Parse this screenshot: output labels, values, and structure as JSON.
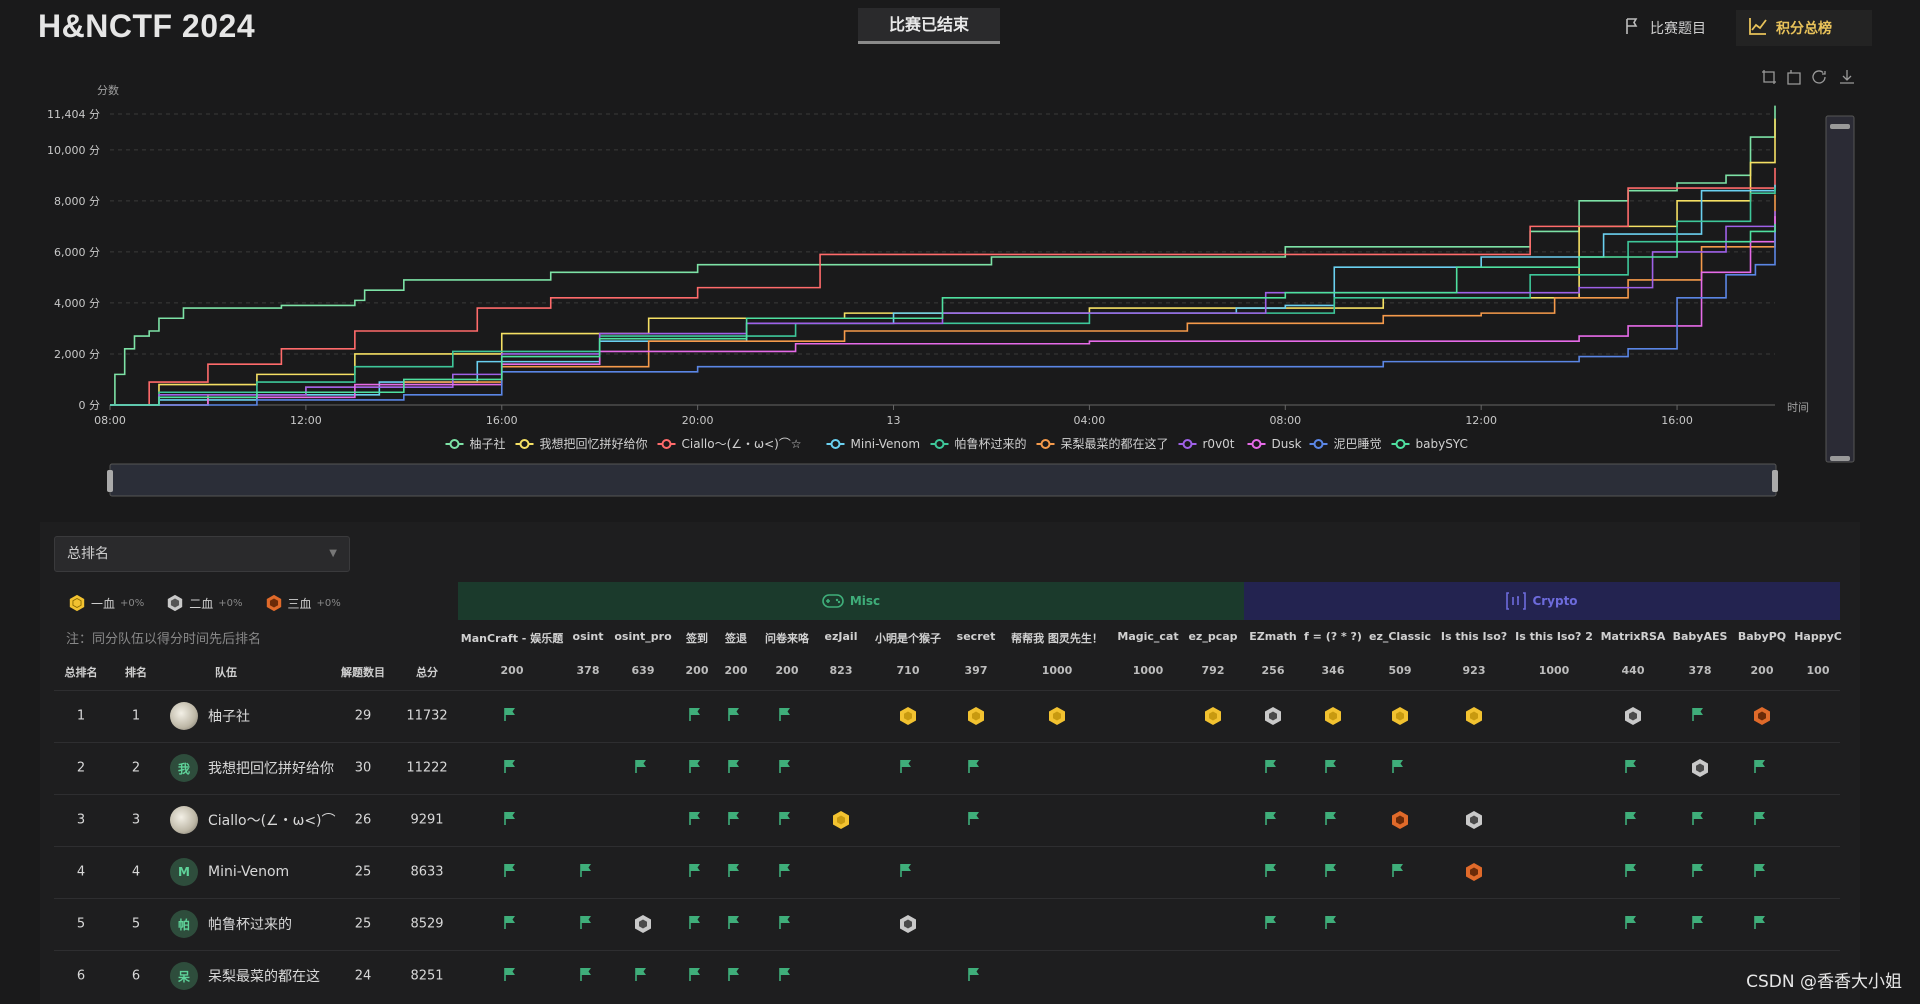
{
  "header": {
    "title": "H&NCTF 2024",
    "status_tab": "比赛已结束",
    "nav_problems": "比赛题目",
    "nav_scoreboard": "积分总榜"
  },
  "chart_data": {
    "type": "line",
    "ylabel": "分数",
    "xlabel": "时间",
    "y_ticks": [
      "0 分",
      "2,000 分",
      "4,000 分",
      "6,000 分",
      "8,000 分",
      "10,000 分",
      "11,404 分"
    ],
    "y_tick_values": [
      0,
      2000,
      4000,
      6000,
      8000,
      10000,
      11404
    ],
    "ylim": [
      0,
      11404
    ],
    "x_ticks": [
      "08:00",
      "12:00",
      "16:00",
      "20:00",
      "13",
      "04:00",
      "08:00",
      "12:00",
      "16:00"
    ],
    "x_tick_hours": [
      0,
      4,
      8,
      12,
      16,
      20,
      24,
      28,
      32
    ],
    "xlim_hours": [
      0,
      34
    ],
    "grid": true,
    "legend_position": "bottom",
    "series": [
      {
        "name": "柚子社",
        "color": "#7de2a6",
        "points": [
          [
            0,
            0
          ],
          [
            0.1,
            1200
          ],
          [
            0.3,
            2200
          ],
          [
            0.5,
            2700
          ],
          [
            0.8,
            2900
          ],
          [
            1.0,
            3400
          ],
          [
            1.5,
            3800
          ],
          [
            3.0,
            3800
          ],
          [
            3.5,
            3900
          ],
          [
            5.0,
            4100
          ],
          [
            5.2,
            4500
          ],
          [
            6.0,
            4900
          ],
          [
            9.0,
            5200
          ],
          [
            12.0,
            5500
          ],
          [
            18.0,
            5800
          ],
          [
            24.0,
            6200
          ],
          [
            28.0,
            6200
          ],
          [
            29.0,
            6800
          ],
          [
            30.0,
            8000
          ],
          [
            31.0,
            8400
          ],
          [
            32.0,
            8700
          ],
          [
            33.0,
            9000
          ],
          [
            33.5,
            10500
          ],
          [
            34.0,
            11732
          ]
        ]
      },
      {
        "name": "我想把回忆拼好给你",
        "color": "#f5e064",
        "points": [
          [
            0,
            0
          ],
          [
            1.0,
            800
          ],
          [
            3.0,
            1200
          ],
          [
            5.0,
            2000
          ],
          [
            8.0,
            2800
          ],
          [
            11.0,
            3400
          ],
          [
            15.0,
            3600
          ],
          [
            20.0,
            3800
          ],
          [
            26.0,
            4200
          ],
          [
            30.0,
            7000
          ],
          [
            32.0,
            8000
          ],
          [
            33.5,
            9500
          ],
          [
            34.0,
            11222
          ]
        ]
      },
      {
        "name": "Ciallo～(∠・ω<)⌒☆",
        "color": "#ff6b6b",
        "points": [
          [
            0,
            0
          ],
          [
            0.8,
            900
          ],
          [
            2.0,
            1600
          ],
          [
            3.5,
            2200
          ],
          [
            5.0,
            2900
          ],
          [
            7.5,
            3800
          ],
          [
            9.0,
            4200
          ],
          [
            12.0,
            4600
          ],
          [
            14.5,
            5900
          ],
          [
            24.0,
            5900
          ],
          [
            29.0,
            7000
          ],
          [
            31.0,
            8500
          ],
          [
            34.0,
            9291
          ]
        ]
      },
      {
        "name": "Mini-Venom",
        "color": "#6ad0f0",
        "points": [
          [
            0,
            0
          ],
          [
            1.0,
            200
          ],
          [
            3.0,
            400
          ],
          [
            5.5,
            900
          ],
          [
            7.5,
            1700
          ],
          [
            10.0,
            2500
          ],
          [
            13.0,
            3200
          ],
          [
            16.0,
            3600
          ],
          [
            23.0,
            3800
          ],
          [
            24.0,
            3900
          ],
          [
            25.0,
            5400
          ],
          [
            28.0,
            5800
          ],
          [
            30.5,
            6700
          ],
          [
            32.5,
            8400
          ],
          [
            34.0,
            8633
          ]
        ]
      },
      {
        "name": "帕鲁杯过来的",
        "color": "#3ec79a",
        "points": [
          [
            0,
            0
          ],
          [
            1.0,
            500
          ],
          [
            3.0,
            900
          ],
          [
            5.0,
            1500
          ],
          [
            7.0,
            2100
          ],
          [
            10.0,
            2700
          ],
          [
            14.0,
            3200
          ],
          [
            20.0,
            3600
          ],
          [
            25.0,
            4200
          ],
          [
            29.0,
            5100
          ],
          [
            31.0,
            6400
          ],
          [
            32.0,
            7200
          ],
          [
            33.5,
            8300
          ],
          [
            34.0,
            8529
          ]
        ]
      },
      {
        "name": "呆梨最菜的都在这了",
        "color": "#f59a4b",
        "points": [
          [
            0,
            0
          ],
          [
            2.0,
            400
          ],
          [
            4.0,
            700
          ],
          [
            6.0,
            900
          ],
          [
            8.0,
            1500
          ],
          [
            11.0,
            2500
          ],
          [
            15.0,
            2900
          ],
          [
            22.0,
            3200
          ],
          [
            26.0,
            3500
          ],
          [
            28.0,
            3600
          ],
          [
            29.5,
            4200
          ],
          [
            31.0,
            4900
          ],
          [
            32.5,
            6200
          ],
          [
            34.0,
            8251
          ]
        ]
      },
      {
        "name": "r0v0t",
        "color": "#9f61e8",
        "points": [
          [
            0,
            0
          ],
          [
            1.0,
            400
          ],
          [
            4.0,
            700
          ],
          [
            7.0,
            1200
          ],
          [
            8.0,
            2000
          ],
          [
            10.0,
            2800
          ],
          [
            13.0,
            3200
          ],
          [
            17.0,
            3600
          ],
          [
            23.5,
            3600
          ],
          [
            23.6,
            4400
          ],
          [
            27.0,
            4400
          ],
          [
            30.0,
            4600
          ],
          [
            31.5,
            6000
          ],
          [
            33.0,
            7000
          ],
          [
            34.0,
            7600
          ]
        ]
      },
      {
        "name": "Dusk",
        "color": "#e66be8",
        "points": [
          [
            0,
            0
          ],
          [
            2.0,
            300
          ],
          [
            5.0,
            800
          ],
          [
            8.0,
            1600
          ],
          [
            10.0,
            2100
          ],
          [
            14.0,
            2400
          ],
          [
            20.0,
            2500
          ],
          [
            28.0,
            2500
          ],
          [
            30.0,
            2700
          ],
          [
            31.0,
            3100
          ],
          [
            32.5,
            5200
          ],
          [
            33.5,
            6400
          ],
          [
            34.0,
            7400
          ]
        ]
      },
      {
        "name": "泥巴睡觉",
        "color": "#5b86e5",
        "points": [
          [
            0,
            0
          ],
          [
            3.0,
            200
          ],
          [
            6.0,
            400
          ],
          [
            8.0,
            1300
          ],
          [
            12.0,
            1500
          ],
          [
            20.0,
            1500
          ],
          [
            26.0,
            1700
          ],
          [
            30.0,
            1900
          ],
          [
            31.0,
            2200
          ],
          [
            32.0,
            4200
          ],
          [
            33.0,
            5100
          ],
          [
            33.6,
            5500
          ],
          [
            34.0,
            6900
          ]
        ]
      },
      {
        "name": "babySYC",
        "color": "#4fe0a0",
        "points": [
          [
            0,
            0
          ],
          [
            1.0,
            300
          ],
          [
            3.0,
            500
          ],
          [
            6.0,
            1000
          ],
          [
            8.0,
            1900
          ],
          [
            10.0,
            2600
          ],
          [
            13.0,
            3400
          ],
          [
            17.0,
            4200
          ],
          [
            24.0,
            4400
          ],
          [
            27.5,
            5400
          ],
          [
            30.0,
            5800
          ],
          [
            32.0,
            6400
          ],
          [
            33.5,
            6800
          ],
          [
            34.0,
            7100
          ]
        ]
      }
    ]
  },
  "table": {
    "select_value": "总排名",
    "medals": [
      {
        "label": "一血",
        "pct": "+0%",
        "icon": "gold-hexagon-icon"
      },
      {
        "label": "二血",
        "pct": "+0%",
        "icon": "silver-hexagon-icon"
      },
      {
        "label": "三血",
        "pct": "+0%",
        "icon": "bronze-hexagon-icon"
      }
    ],
    "note": "注：同分队伍以得分时间先后排名",
    "categories": [
      {
        "name": "Misc",
        "icon": "gamepad-icon"
      },
      {
        "name": "Crypto",
        "icon": "binary-icon"
      }
    ],
    "fixed_headers": [
      "总排名",
      "排名",
      "队伍",
      "解题数目",
      "总分"
    ],
    "problems": [
      {
        "name": "ManCraft - 娱乐题",
        "score": "200"
      },
      {
        "name": "osint",
        "score": "378"
      },
      {
        "name": "osint_pro",
        "score": "639"
      },
      {
        "name": "签到",
        "score": "200"
      },
      {
        "name": "签退",
        "score": "200"
      },
      {
        "name": "问卷来咯",
        "score": "200"
      },
      {
        "name": "ezJail",
        "score": "823"
      },
      {
        "name": "小明是个猴子",
        "score": "710"
      },
      {
        "name": "secret",
        "score": "397"
      },
      {
        "name": "帮帮我 图灵先生！",
        "score": "1000"
      },
      {
        "name": "Magic_cat",
        "score": "1000"
      },
      {
        "name": "ez_pcap",
        "score": "792"
      },
      {
        "name": "EZmath",
        "score": "256"
      },
      {
        "name": "f = (? * ?)",
        "score": "346"
      },
      {
        "name": "ez_Classic",
        "score": "509"
      },
      {
        "name": "Is this Iso?",
        "score": "923"
      },
      {
        "name": "Is this Iso? 2",
        "score": "1000"
      },
      {
        "name": "MatrixRSA",
        "score": "440"
      },
      {
        "name": "BabyAES",
        "score": "378"
      },
      {
        "name": "BabyPQ",
        "score": "200"
      },
      {
        "name": "HappyC",
        "score": "100"
      }
    ],
    "rows": [
      {
        "overall": "1",
        "rank": "1",
        "team": "柚子社",
        "avatar": "",
        "solved": "29",
        "total": "11732",
        "marks": [
          "flag",
          "",
          "",
          "flag",
          "flag",
          "flag",
          "",
          "gold",
          "gold",
          "gold",
          "",
          "gold",
          "silver",
          "gold",
          "gold",
          "gold",
          "",
          "silver",
          "flag",
          "bronze",
          ""
        ]
      },
      {
        "overall": "2",
        "rank": "2",
        "team": "我想把回忆拼好给你",
        "avatar": "我",
        "solved": "30",
        "total": "11222",
        "marks": [
          "flag",
          "",
          "flag",
          "flag",
          "flag",
          "flag",
          "",
          "flag",
          "flag",
          "",
          "",
          "",
          "flag",
          "flag",
          "flag",
          "",
          "",
          "flag",
          "silver",
          "flag",
          ""
        ]
      },
      {
        "overall": "3",
        "rank": "3",
        "team": "Ciallo～(∠・ω<)⌒",
        "avatar": "",
        "solved": "26",
        "total": "9291",
        "marks": [
          "flag",
          "",
          "",
          "flag",
          "flag",
          "flag",
          "gold",
          "",
          "flag",
          "",
          "",
          "",
          "flag",
          "flag",
          "bronze",
          "silver",
          "",
          "flag",
          "flag",
          "flag",
          ""
        ]
      },
      {
        "overall": "4",
        "rank": "4",
        "team": "Mini-Venom",
        "avatar": "M",
        "solved": "25",
        "total": "8633",
        "marks": [
          "flag",
          "flag",
          "",
          "flag",
          "flag",
          "flag",
          "",
          "flag",
          "",
          "",
          "",
          "",
          "flag",
          "flag",
          "flag",
          "bronze",
          "",
          "flag",
          "flag",
          "flag",
          ""
        ]
      },
      {
        "overall": "5",
        "rank": "5",
        "team": "帕鲁杯过来的",
        "avatar": "帕",
        "solved": "25",
        "total": "8529",
        "marks": [
          "flag",
          "flag",
          "silver",
          "flag",
          "flag",
          "flag",
          "",
          "silver",
          "",
          "",
          "",
          "",
          "flag",
          "flag",
          "",
          "",
          "",
          "flag",
          "flag",
          "flag",
          ""
        ]
      },
      {
        "overall": "6",
        "rank": "6",
        "team": "呆梨最菜的都在这",
        "avatar": "呆",
        "solved": "24",
        "total": "8251",
        "marks": [
          "flag",
          "flag",
          "flag",
          "flag",
          "flag",
          "flag",
          "",
          "",
          "flag",
          "",
          "",
          "",
          "",
          "",
          "",
          "",
          "",
          "",
          "",
          "",
          ""
        ]
      }
    ]
  },
  "watermark": "CSDN @香香大小姐",
  "colors": {
    "flag": "#3fae7a",
    "gold": "#f2c230",
    "silver": "#c9c9c9",
    "bronze": "#e06a2a",
    "accent": "#e8c25a"
  }
}
